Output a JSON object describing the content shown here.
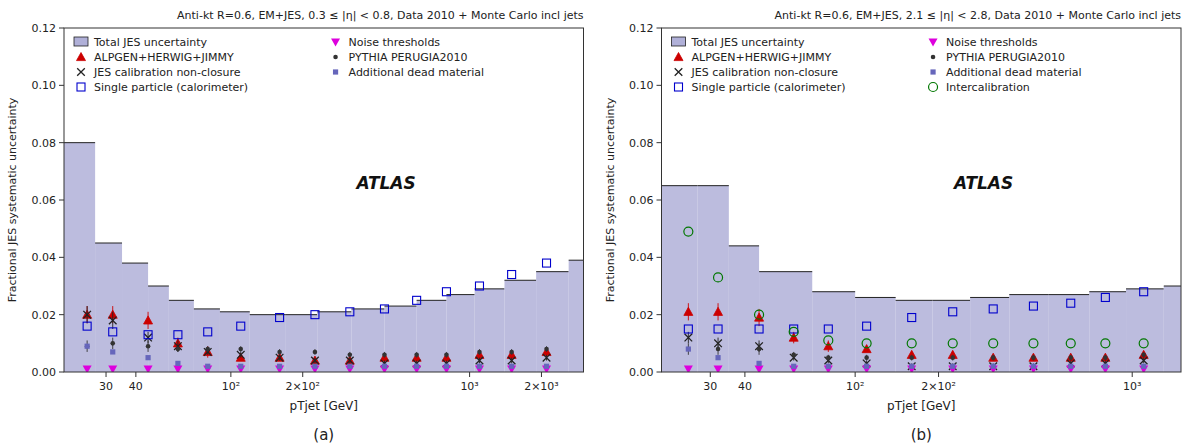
{
  "chart_data": [
    {
      "type": "scatter",
      "title": "Anti-kt R=0.6, EM+JES, 0.3 ≤ |η| < 0.8, Data 2010 + Monte Carlo incl jets",
      "subtitle": "(a)",
      "annotations": [
        "ATLAS"
      ],
      "x_label": "pTjet [GeV]",
      "y_label": "Fractional JES systematic uncertainty",
      "log": "x",
      "grid": false,
      "legend": "upper left",
      "xlim": [
        20,
        3000
      ],
      "ylim": [
        0,
        0.12
      ],
      "xticks": [
        30,
        40,
        {
          "value": 100,
          "label": "10²"
        },
        {
          "value": 200,
          "label": "2×10²"
        },
        {
          "value": 1000,
          "label": "10³"
        },
        {
          "value": 2000,
          "label": "2×10³"
        }
      ],
      "yticks": [
        {
          "value": 0,
          "label": "0.00"
        },
        0.02,
        0.04,
        0.06,
        0.08,
        {
          "value": 0.1,
          "label": "0.10"
        },
        0.12
      ],
      "series": [
        {
          "name": "Total JES uncertainty",
          "type": "step",
          "color": "#b0b0d8",
          "bins": [
            20,
            27,
            35,
            45,
            55,
            70,
            90,
            120,
            170,
            230,
            320,
            440,
            600,
            800,
            1050,
            1400,
            1900,
            2600,
            3000
          ],
          "values": [
            0.08,
            0.045,
            0.038,
            0.03,
            0.025,
            0.022,
            0.021,
            0.02,
            0.02,
            0.021,
            0.022,
            0.023,
            0.025,
            0.027,
            0.029,
            0.032,
            0.035,
            0.039
          ]
        },
        {
          "name": "ALPGEN+HERWIG+JIMMY",
          "marker": "triangle-up",
          "color": "#cc0000",
          "x": [
            25,
            32,
            45,
            60,
            80,
            110,
            160,
            225,
            315,
            440,
            600,
            800,
            1100,
            1500,
            2100
          ],
          "values": [
            0.02,
            0.02,
            0.018,
            0.01,
            0.007,
            0.005,
            0.005,
            0.004,
            0.004,
            0.005,
            0.005,
            0.005,
            0.006,
            0.006,
            0.007
          ],
          "errors": [
            0.003,
            0.003,
            0.003,
            0.002,
            0.002,
            0.001,
            0.001,
            0.001,
            0.001,
            0.001,
            0.001,
            0.001,
            0.001,
            0.001,
            0.001
          ]
        },
        {
          "name": "JES calibration non-closure",
          "marker": "cross",
          "color": "#222222",
          "x": [
            25,
            32,
            45,
            60,
            80,
            110,
            160,
            225,
            315,
            440,
            600,
            800,
            1100,
            1500,
            2100
          ],
          "values": [
            0.02,
            0.018,
            0.012,
            0.009,
            0.007,
            0.006,
            0.005,
            0.004,
            0.004,
            0.003,
            0.003,
            0.003,
            0.004,
            0.004,
            0.005
          ],
          "errors": [
            0.003,
            0.003,
            0.002,
            0.002,
            0.001,
            0.001,
            0.001,
            0.001,
            0.001,
            0.001,
            0.001,
            0.001,
            0.001,
            0.001,
            0.001
          ]
        },
        {
          "name": "Single particle (calorimeter)",
          "marker": "square-open",
          "color": "#0000cc",
          "x": [
            25,
            32,
            45,
            60,
            80,
            110,
            160,
            225,
            315,
            440,
            600,
            800,
            1100,
            1500,
            2100
          ],
          "values": [
            0.016,
            0.014,
            0.013,
            0.013,
            0.014,
            0.016,
            0.019,
            0.02,
            0.021,
            0.022,
            0.025,
            0.028,
            0.03,
            0.034,
            0.038
          ]
        },
        {
          "name": "Noise thresholds",
          "marker": "triangle-down",
          "color": "#dd00dd",
          "x": [
            25,
            32,
            45,
            60,
            80,
            110,
            160,
            225,
            315,
            440,
            600,
            800,
            1100,
            1500,
            2100
          ],
          "values": [
            0.001,
            0.001,
            0.001,
            0.001,
            0.001,
            0.001,
            0.001,
            0.001,
            0.001,
            0.001,
            0.001,
            0.001,
            0.001,
            0.001,
            0.001
          ]
        },
        {
          "name": "PYTHIA PERUGIA2010",
          "marker": "circle",
          "color": "#333333",
          "x": [
            25,
            32,
            45,
            60,
            80,
            110,
            160,
            225,
            315,
            440,
            600,
            800,
            1100,
            1500,
            2100
          ],
          "values": [
            0.009,
            0.01,
            0.009,
            0.008,
            0.008,
            0.008,
            0.007,
            0.007,
            0.006,
            0.006,
            0.006,
            0.006,
            0.007,
            0.007,
            0.008
          ],
          "errors": [
            0.002,
            0.002,
            0.002,
            0.001,
            0.001,
            0.001,
            0.001,
            0.001,
            0.001,
            0.001,
            0.001,
            0.001,
            0.001,
            0.001,
            0.001
          ]
        },
        {
          "name": "Additional dead material",
          "marker": "square",
          "color": "#6666bb",
          "x": [
            25,
            32,
            45,
            60,
            80,
            110,
            160,
            225,
            315,
            440,
            600,
            800,
            1100,
            1500,
            2100
          ],
          "values": [
            0.009,
            0.007,
            0.005,
            0.003,
            0.002,
            0.002,
            0.002,
            0.002,
            0.002,
            0.002,
            0.002,
            0.002,
            0.002,
            0.002,
            0.002
          ]
        }
      ]
    },
    {
      "type": "scatter",
      "title": "Anti-kt R=0.6, EM+JES, 2.1 ≤ |η| < 2.8, Data 2010 + Monte Carlo incl jets",
      "subtitle": "(b)",
      "annotations": [
        "ATLAS"
      ],
      "x_label": "pTjet [GeV]",
      "y_label": "Fractional JES systematic uncertainty",
      "log": "x",
      "grid": false,
      "legend": "upper left",
      "xlim": [
        20,
        1500
      ],
      "ylim": [
        0,
        0.12
      ],
      "xticks": [
        30,
        40,
        {
          "value": 100,
          "label": "10²"
        },
        {
          "value": 200,
          "label": "2×10²"
        },
        {
          "value": 1000,
          "label": "10³"
        }
      ],
      "yticks": [
        {
          "value": 0,
          "label": "0.00"
        },
        0.02,
        0.04,
        0.06,
        0.08,
        {
          "value": 0.1,
          "label": "0.10"
        },
        0.12
      ],
      "series": [
        {
          "name": "Total JES uncertainty",
          "type": "step",
          "color": "#b0b0d8",
          "bins": [
            20,
            27,
            35,
            45,
            70,
            100,
            140,
            190,
            260,
            360,
            500,
            700,
            950,
            1300,
            1500
          ],
          "values": [
            0.065,
            0.065,
            0.044,
            0.035,
            0.028,
            0.026,
            0.025,
            0.025,
            0.026,
            0.027,
            0.027,
            0.028,
            0.029,
            0.03
          ]
        },
        {
          "name": "ALPGEN+HERWIG+JIMMY",
          "marker": "triangle-up",
          "color": "#cc0000",
          "x": [
            25,
            32,
            45,
            60,
            80,
            110,
            160,
            225,
            315,
            440,
            600,
            800,
            1100
          ],
          "values": [
            0.021,
            0.021,
            0.019,
            0.012,
            0.009,
            0.008,
            0.006,
            0.006,
            0.005,
            0.005,
            0.005,
            0.005,
            0.006
          ],
          "errors": [
            0.003,
            0.003,
            0.003,
            0.002,
            0.002,
            0.001,
            0.001,
            0.001,
            0.001,
            0.001,
            0.001,
            0.001,
            0.001
          ]
        },
        {
          "name": "JES calibration non-closure",
          "marker": "cross",
          "color": "#222222",
          "x": [
            25,
            32,
            45,
            60,
            80,
            110,
            160,
            225,
            315,
            440,
            600,
            800,
            1100
          ],
          "values": [
            0.012,
            0.01,
            0.009,
            0.005,
            0.004,
            0.003,
            0.002,
            0.002,
            0.002,
            0.002,
            0.003,
            0.003,
            0.004
          ],
          "errors": [
            0.002,
            0.002,
            0.002,
            0.001,
            0.001,
            0.001,
            0.001,
            0.001,
            0.001,
            0.001,
            0.001,
            0.001,
            0.001
          ]
        },
        {
          "name": "Single particle (calorimeter)",
          "marker": "square-open",
          "color": "#0000cc",
          "x": [
            25,
            32,
            45,
            60,
            80,
            110,
            160,
            225,
            315,
            440,
            600,
            800,
            1100
          ],
          "values": [
            0.015,
            0.015,
            0.015,
            0.015,
            0.015,
            0.016,
            0.019,
            0.021,
            0.022,
            0.023,
            0.024,
            0.026,
            0.028
          ]
        },
        {
          "name": "Noise thresholds",
          "marker": "triangle-down",
          "color": "#dd00dd",
          "x": [
            25,
            32,
            45,
            60,
            80,
            110,
            160,
            225,
            315,
            440,
            600,
            800,
            1100
          ],
          "values": [
            0.001,
            0.001,
            0.001,
            0.001,
            0.001,
            0.001,
            0.001,
            0.001,
            0.001,
            0.001,
            0.001,
            0.001,
            0.001
          ]
        },
        {
          "name": "PYTHIA PERUGIA2010",
          "marker": "circle",
          "color": "#333333",
          "x": [
            25,
            32,
            45,
            60,
            80,
            110,
            160,
            225,
            315,
            440,
            600,
            800,
            1100
          ],
          "values": [
            0.008,
            0.008,
            0.008,
            0.006,
            0.005,
            0.005,
            0.005,
            0.005,
            0.005,
            0.005,
            0.005,
            0.005,
            0.006
          ],
          "errors": [
            0.002,
            0.002,
            0.002,
            0.001,
            0.001,
            0.001,
            0.001,
            0.001,
            0.001,
            0.001,
            0.001,
            0.001,
            0.001
          ]
        },
        {
          "name": "Additional dead material",
          "marker": "square",
          "color": "#6666bb",
          "x": [
            25,
            32,
            45,
            60,
            80,
            110,
            160,
            225,
            315,
            440,
            600,
            800,
            1100
          ],
          "values": [
            0.008,
            0.005,
            0.003,
            0.002,
            0.002,
            0.002,
            0.002,
            0.002,
            0.002,
            0.002,
            0.002,
            0.002,
            0.002
          ]
        },
        {
          "name": "Intercalibration",
          "marker": "circle-open",
          "color": "#007700",
          "x": [
            25,
            32,
            45,
            60,
            80,
            110,
            160,
            225,
            315,
            440,
            600,
            800,
            1100
          ],
          "values": [
            0.049,
            0.033,
            0.02,
            0.014,
            0.011,
            0.01,
            0.01,
            0.01,
            0.01,
            0.01,
            0.01,
            0.01,
            0.01
          ]
        }
      ]
    }
  ]
}
